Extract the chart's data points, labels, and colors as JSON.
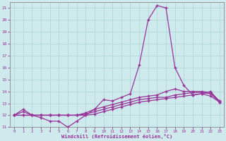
{
  "xlabel": "Windchill (Refroidissement éolien,°C)",
  "ylabel": "",
  "xlim": [
    -0.5,
    23.5
  ],
  "ylim": [
    11,
    21.5
  ],
  "yticks": [
    11,
    12,
    13,
    14,
    15,
    16,
    17,
    18,
    19,
    20,
    21
  ],
  "xticks": [
    0,
    1,
    2,
    3,
    4,
    5,
    6,
    7,
    8,
    9,
    10,
    11,
    12,
    13,
    14,
    15,
    16,
    17,
    18,
    19,
    20,
    21,
    22,
    23
  ],
  "bg_color": "#ceeaec",
  "grid_color": "#aacccc",
  "line_color": "#993399",
  "line1_y": [
    12.0,
    12.5,
    12.0,
    11.8,
    11.5,
    11.5,
    11.0,
    11.5,
    12.0,
    12.5,
    13.3,
    13.2,
    13.5,
    13.8,
    16.2,
    20.0,
    21.2,
    21.0,
    16.0,
    14.5,
    13.7,
    13.8,
    14.0,
    13.1
  ],
  "line2_y": [
    12.0,
    12.3,
    12.0,
    12.0,
    12.0,
    12.0,
    12.0,
    12.0,
    12.2,
    12.5,
    12.7,
    12.9,
    13.1,
    13.3,
    13.5,
    13.6,
    13.7,
    14.0,
    14.2,
    14.0,
    14.0,
    14.0,
    13.9,
    13.2
  ],
  "line3_y": [
    12.0,
    12.0,
    12.0,
    12.0,
    12.0,
    12.0,
    12.0,
    12.0,
    12.1,
    12.3,
    12.5,
    12.7,
    12.9,
    13.1,
    13.3,
    13.4,
    13.5,
    13.5,
    13.7,
    13.8,
    13.9,
    13.9,
    13.8,
    13.1
  ],
  "line4_y": [
    12.0,
    12.0,
    12.0,
    12.0,
    12.0,
    12.0,
    12.0,
    12.0,
    12.0,
    12.1,
    12.3,
    12.5,
    12.7,
    12.9,
    13.1,
    13.2,
    13.3,
    13.4,
    13.5,
    13.6,
    13.7,
    13.8,
    13.6,
    13.1
  ]
}
